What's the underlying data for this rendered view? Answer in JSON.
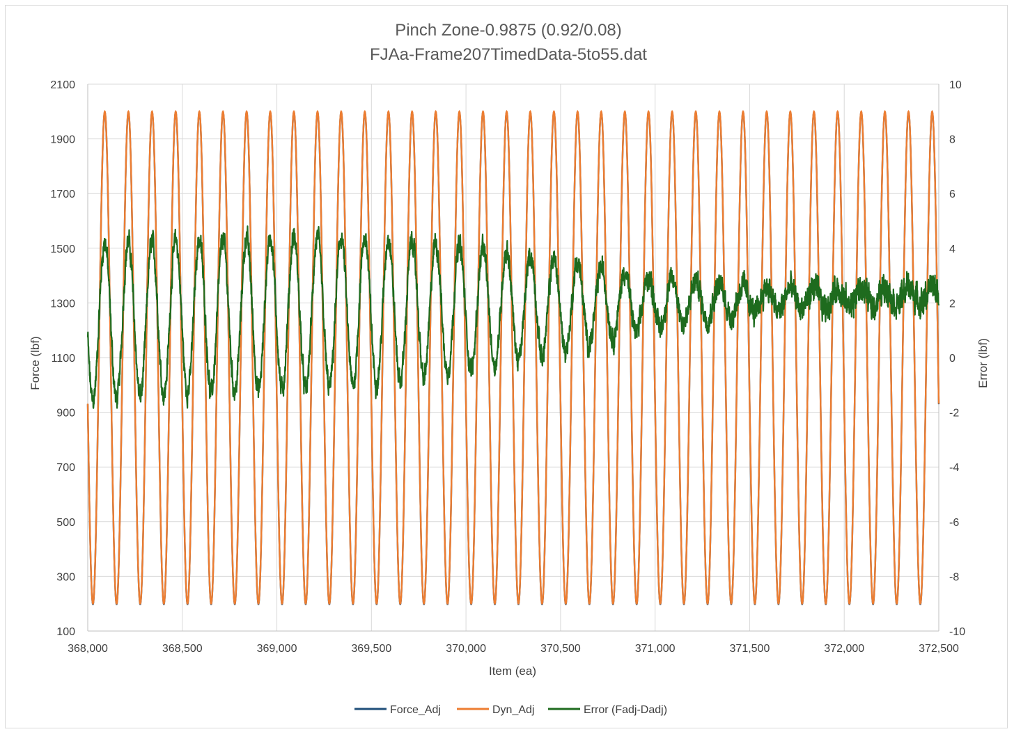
{
  "chart_data": {
    "type": "line",
    "title": "Pinch Zone-0.9875 (0.92/0.08)",
    "subtitle": "FJAa-Frame207TimedData-5to55.dat",
    "xlabel": "Item (ea)",
    "ylabel": "Force (lbf)",
    "y2label": "Error (lbf)",
    "xlim": [
      368000,
      372500
    ],
    "ylim": [
      100,
      2100
    ],
    "y2lim": [
      -10,
      10
    ],
    "x_ticks": [
      368000,
      368500,
      369000,
      369500,
      370000,
      370500,
      371000,
      371500,
      372000,
      372500
    ],
    "x_tick_labels": [
      "368,000",
      "368,500",
      "369,000",
      "369,500",
      "370,000",
      "370,500",
      "371,000",
      "371,500",
      "372,000",
      "372,500"
    ],
    "y_ticks": [
      100,
      300,
      500,
      700,
      900,
      1100,
      1300,
      1500,
      1700,
      1900,
      2100
    ],
    "y_tick_labels": [
      "100",
      "300",
      "500",
      "700",
      "900",
      "1100",
      "1300",
      "1500",
      "1700",
      "1900",
      "2100"
    ],
    "y2_ticks": [
      -10,
      -8,
      -6,
      -4,
      -2,
      0,
      2,
      4,
      6,
      8,
      10
    ],
    "y2_tick_labels": [
      "-10",
      "-8",
      "-6",
      "-4",
      "-2",
      "0",
      "2",
      "4",
      "6",
      "8",
      "10"
    ],
    "grid": true,
    "legend_position": "bottom",
    "series": [
      {
        "name": "Force_Adj",
        "axis": "left",
        "color": "#1f4e79",
        "form": "sinusoid",
        "min": 200,
        "max": 2000,
        "period": 125,
        "peak_at": 368090
      },
      {
        "name": "Dyn_Adj",
        "axis": "left",
        "color": "#ed7d31",
        "form": "sinusoid",
        "min": 200,
        "max": 2000,
        "period": 125,
        "peak_at": 368090
      },
      {
        "name": "Error (Fadj-Dadj)",
        "axis": "right",
        "color": "#1e6b1e",
        "form": "noisy-oscillation",
        "period": 125,
        "peak_at": 368090,
        "x": [
          368000,
          368500,
          369000,
          369500,
          370000,
          370500,
          371000,
          371500,
          372000,
          372500
        ],
        "mean": [
          1.3,
          1.5,
          1.6,
          1.7,
          1.8,
          1.9,
          2.0,
          2.1,
          2.2,
          2.3
        ],
        "amplitude": [
          2.9,
          2.8,
          2.8,
          2.7,
          2.3,
          1.7,
          0.9,
          0.5,
          0.3,
          0.3
        ],
        "noise": [
          0.45,
          0.45,
          0.45,
          0.45,
          0.45,
          0.45,
          0.5,
          0.55,
          0.6,
          0.6
        ]
      }
    ]
  }
}
